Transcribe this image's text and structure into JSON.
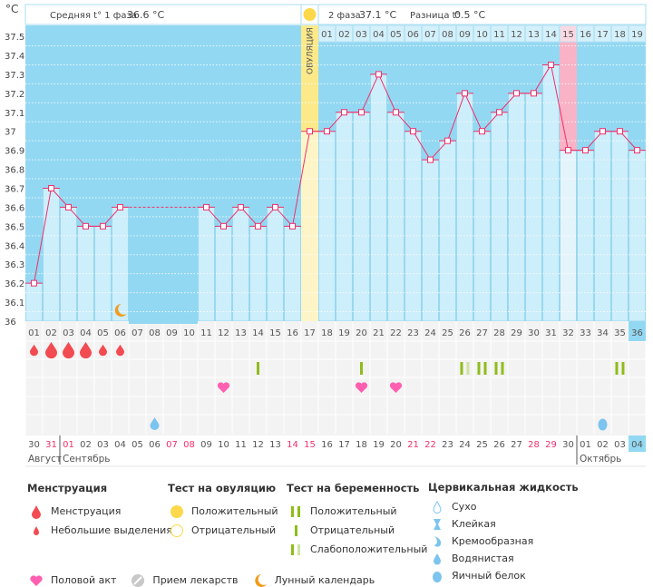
{
  "chart_data": {
    "type": "line",
    "y_unit": "°C",
    "ylim": [
      36,
      37.5
    ],
    "yticks": [
      "37.5",
      "37.4",
      "37.3",
      "37.2",
      "37.1",
      "37",
      "36.9",
      "36.8",
      "36.7",
      "36.6",
      "36.5",
      "36.4",
      "36.3",
      "36.2",
      "36.1",
      "36"
    ],
    "cycle_days": [
      "01",
      "02",
      "03",
      "04",
      "05",
      "06",
      "07",
      "08",
      "09",
      "10",
      "11",
      "12",
      "13",
      "14",
      "15",
      "16",
      "17",
      "18",
      "19",
      "20",
      "21",
      "22",
      "23",
      "24",
      "25",
      "26",
      "27",
      "28",
      "29",
      "30",
      "31",
      "32",
      "33",
      "34",
      "35",
      "36"
    ],
    "temperatures": [
      36.2,
      36.7,
      36.6,
      36.5,
      36.5,
      36.6,
      null,
      null,
      null,
      null,
      36.6,
      36.5,
      36.6,
      36.5,
      36.6,
      36.5,
      37.0,
      37.0,
      37.1,
      37.1,
      37.3,
      37.1,
      37.0,
      36.85,
      36.95,
      37.2,
      37.0,
      37.1,
      37.2,
      37.2,
      37.35,
      36.9,
      36.9,
      37.0,
      37.0,
      36.9
    ],
    "ovulation_day": 17,
    "ovulation_label": "ОВУЛЯЦИЯ",
    "phase2_days": [
      "01",
      "02",
      "03",
      "04",
      "05",
      "06",
      "07",
      "08",
      "09",
      "10",
      "11",
      "12",
      "13",
      "14",
      "15",
      "16",
      "17",
      "18",
      "19"
    ],
    "highlight_phase2_day": 15,
    "current_day": 36,
    "moon_day": 6,
    "dates": [
      "30",
      "31",
      "01",
      "02",
      "03",
      "04",
      "05",
      "06",
      "07",
      "08",
      "09",
      "10",
      "11",
      "12",
      "13",
      "14",
      "15",
      "16",
      "17",
      "18",
      "19",
      "20",
      "21",
      "22",
      "23",
      "24",
      "25",
      "26",
      "27",
      "28",
      "29",
      "30",
      "01",
      "02",
      "03",
      "04"
    ],
    "red_dates_index": [
      2,
      3,
      9,
      10,
      16,
      17,
      23,
      24,
      30,
      31
    ],
    "months": [
      {
        "label": "Август",
        "start_day": 1
      },
      {
        "label": "Сентябрь",
        "start_day": 3
      },
      {
        "label": "Октябрь",
        "start_day": 33
      }
    ],
    "menstruation": {
      "1": "light",
      "2": "heavy",
      "3": "heavy",
      "4": "heavy",
      "5": "light",
      "6": "light"
    },
    "pregnancy_tests": {
      "14": "negative",
      "20": "negative",
      "26": "weak",
      "27": "positive",
      "28": "positive",
      "35": "positive"
    },
    "intercourse_days": [
      12,
      20,
      22
    ],
    "cervical_fluid": {
      "8": "watery",
      "34": "egg-white"
    }
  },
  "header": {
    "phase1": "Средняя t° 1 фаза",
    "phase1_value": "36.6 °C",
    "phase2": "2 фаза",
    "phase2_value": "37.1 °C",
    "diff": "Разница t°",
    "diff_value": "0.5 °C"
  },
  "colors": {
    "line": "#f0306a",
    "bg": "#93d8f2",
    "bar": "#cdeefb",
    "ovulation": "#fbe98a",
    "highlight": "#f8b3c6",
    "current": "#93d8f2",
    "drop": "#f24b52",
    "test": "#8fbc1a",
    "test_weak": "#cfe3a0",
    "heart": "#ff5fb0",
    "fluid": "#7cc4ef",
    "moon": "#f29b1d"
  },
  "legend": {
    "menstruation": {
      "title": "Менструация",
      "items": [
        "Менструация",
        "Небольшие выделения"
      ]
    },
    "ovulation_test": {
      "title": "Тест на овуляцию",
      "items": [
        "Положительный",
        "Отрицательный"
      ]
    },
    "pregnancy_test": {
      "title": "Тест на беременность",
      "items": [
        "Положительный",
        "Отрицательный",
        "Слабоположительный"
      ]
    },
    "cervical": {
      "title": "Цервикальная жидкость",
      "items": [
        "Сухо",
        "Клейкая",
        "Кремообразная",
        "Водянистая",
        "Яичный белок"
      ]
    },
    "other": [
      "Половой акт",
      "Прием лекарств",
      "Лунный календарь"
    ]
  }
}
